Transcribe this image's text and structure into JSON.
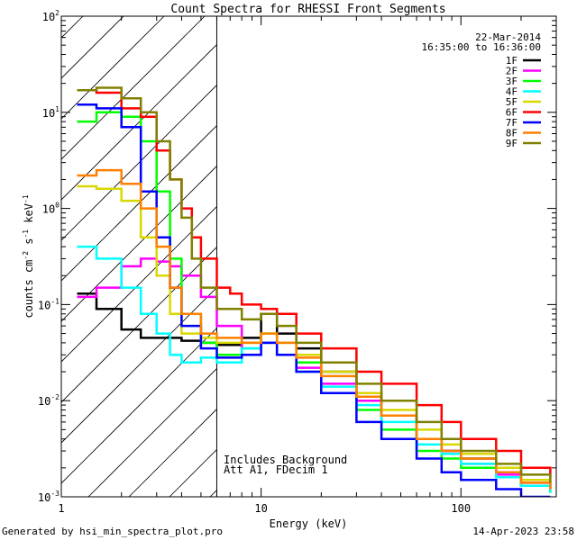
{
  "chart_data": {
    "type": "line",
    "title": "Count Spectra for RHESSI Front Segments",
    "xlabel": "Energy (keV)",
    "ylabel": "counts cm",
    "ylabel_sup1": "-2",
    "ylabel_mid": " s",
    "ylabel_sup2": "-1",
    "ylabel_mid2": " keV",
    "ylabel_sup3": "-1",
    "x_scale": "log",
    "y_scale": "log",
    "xlim": [
      1,
      300
    ],
    "ylim": [
      0.001,
      100
    ],
    "x_tick_labels": [
      {
        "value": 1,
        "label": "1"
      },
      {
        "value": 10,
        "label": "10"
      },
      {
        "value": 100,
        "label": "100"
      }
    ],
    "y_tick_labels": [
      {
        "value": 100,
        "base": "10",
        "exp": "2"
      },
      {
        "value": 10,
        "base": "10",
        "exp": "1"
      },
      {
        "value": 1,
        "base": "10",
        "exp": "0"
      },
      {
        "value": 0.1,
        "base": "10",
        "exp": "-1"
      },
      {
        "value": 0.01,
        "base": "10",
        "exp": "-2"
      },
      {
        "value": 0.001,
        "base": "10",
        "exp": "-3"
      }
    ],
    "date": "22-Mar-2014",
    "time_range": "16:35:00 to 16:36:00",
    "shaded_region_max_energy": 6,
    "annotations": [
      "Includes Background",
      "Att A1, FDecim 1"
    ],
    "series": [
      {
        "name": "1F",
        "color": "#000000",
        "points": [
          [
            1.2,
            0.13
          ],
          [
            1.5,
            0.09
          ],
          [
            2,
            0.055
          ],
          [
            2.5,
            0.045
          ],
          [
            3,
            0.045
          ],
          [
            4,
            0.042
          ],
          [
            5,
            0.04
          ],
          [
            6,
            0.038
          ],
          [
            8,
            0.045
          ],
          [
            10,
            0.08
          ],
          [
            12,
            0.05
          ],
          [
            15,
            0.035
          ],
          [
            20,
            0.02
          ],
          [
            30,
            0.012
          ],
          [
            40,
            0.007
          ],
          [
            60,
            0.004
          ],
          [
            80,
            0.003
          ],
          [
            100,
            0.0025
          ],
          [
            150,
            0.0018
          ],
          [
            200,
            0.0013
          ],
          [
            280,
            0.0012
          ]
        ]
      },
      {
        "name": "2F",
        "color": "#ff00ff",
        "points": [
          [
            1.2,
            0.12
          ],
          [
            1.5,
            0.15
          ],
          [
            2,
            0.25
          ],
          [
            2.5,
            0.3
          ],
          [
            3,
            0.28
          ],
          [
            3.5,
            0.25
          ],
          [
            4,
            0.2
          ],
          [
            5,
            0.12
          ],
          [
            6,
            0.06
          ],
          [
            8,
            0.035
          ],
          [
            10,
            0.04
          ],
          [
            12,
            0.03
          ],
          [
            15,
            0.022
          ],
          [
            20,
            0.015
          ],
          [
            30,
            0.01
          ],
          [
            40,
            0.007
          ],
          [
            60,
            0.004
          ],
          [
            80,
            0.003
          ],
          [
            100,
            0.0022
          ],
          [
            150,
            0.0017
          ],
          [
            200,
            0.0014
          ],
          [
            280,
            0.0012
          ]
        ]
      },
      {
        "name": "3F",
        "color": "#00ff00",
        "points": [
          [
            1.2,
            8
          ],
          [
            1.5,
            10
          ],
          [
            2,
            9
          ],
          [
            2.5,
            5
          ],
          [
            3,
            1.5
          ],
          [
            3.5,
            0.3
          ],
          [
            4,
            0.08
          ],
          [
            5,
            0.04
          ],
          [
            6,
            0.03
          ],
          [
            8,
            0.035
          ],
          [
            10,
            0.05
          ],
          [
            12,
            0.03
          ],
          [
            15,
            0.025
          ],
          [
            20,
            0.012
          ],
          [
            30,
            0.008
          ],
          [
            40,
            0.005
          ],
          [
            60,
            0.003
          ],
          [
            80,
            0.0025
          ],
          [
            100,
            0.002
          ],
          [
            150,
            0.0016
          ],
          [
            200,
            0.0013
          ],
          [
            280,
            0.0011
          ]
        ]
      },
      {
        "name": "4F",
        "color": "#00ffff",
        "points": [
          [
            1.2,
            0.4
          ],
          [
            1.5,
            0.3
          ],
          [
            2,
            0.15
          ],
          [
            2.5,
            0.08
          ],
          [
            3,
            0.05
          ],
          [
            3.5,
            0.03
          ],
          [
            4,
            0.025
          ],
          [
            5,
            0.028
          ],
          [
            6,
            0.025
          ],
          [
            8,
            0.035
          ],
          [
            10,
            0.04
          ],
          [
            12,
            0.03
          ],
          [
            15,
            0.02
          ],
          [
            20,
            0.014
          ],
          [
            30,
            0.009
          ],
          [
            40,
            0.006
          ],
          [
            60,
            0.0035
          ],
          [
            80,
            0.0028
          ],
          [
            100,
            0.0022
          ],
          [
            150,
            0.0016
          ],
          [
            200,
            0.0013
          ],
          [
            280,
            0.0011
          ]
        ]
      },
      {
        "name": "5F",
        "color": "#d8d800",
        "points": [
          [
            1.2,
            1.7
          ],
          [
            1.5,
            1.6
          ],
          [
            2,
            1.2
          ],
          [
            2.5,
            0.5
          ],
          [
            3,
            0.2
          ],
          [
            3.5,
            0.08
          ],
          [
            4,
            0.05
          ],
          [
            5,
            0.045
          ],
          [
            6,
            0.04
          ],
          [
            8,
            0.04
          ],
          [
            10,
            0.05
          ],
          [
            12,
            0.04
          ],
          [
            15,
            0.03
          ],
          [
            20,
            0.02
          ],
          [
            30,
            0.012
          ],
          [
            40,
            0.008
          ],
          [
            60,
            0.005
          ],
          [
            80,
            0.0035
          ],
          [
            100,
            0.0028
          ],
          [
            150,
            0.002
          ],
          [
            200,
            0.0015
          ],
          [
            280,
            0.0012
          ]
        ]
      },
      {
        "name": "6F",
        "color": "#ff0000",
        "points": [
          [
            1.2,
            17
          ],
          [
            1.5,
            16
          ],
          [
            2,
            11
          ],
          [
            2.5,
            9
          ],
          [
            3,
            4
          ],
          [
            3.5,
            2
          ],
          [
            4,
            1
          ],
          [
            4.5,
            0.5
          ],
          [
            5,
            0.3
          ],
          [
            6,
            0.15
          ],
          [
            7,
            0.13
          ],
          [
            8,
            0.1
          ],
          [
            10,
            0.09
          ],
          [
            12,
            0.08
          ],
          [
            15,
            0.05
          ],
          [
            20,
            0.035
          ],
          [
            30,
            0.02
          ],
          [
            40,
            0.015
          ],
          [
            60,
            0.009
          ],
          [
            80,
            0.006
          ],
          [
            100,
            0.004
          ],
          [
            150,
            0.003
          ],
          [
            200,
            0.002
          ],
          [
            280,
            0.0016
          ]
        ]
      },
      {
        "name": "7F",
        "color": "#0000ff",
        "points": [
          [
            1.2,
            12
          ],
          [
            1.5,
            11
          ],
          [
            2,
            7
          ],
          [
            2.5,
            1.5
          ],
          [
            3,
            0.5
          ],
          [
            3.5,
            0.15
          ],
          [
            4,
            0.06
          ],
          [
            5,
            0.035
          ],
          [
            6,
            0.028
          ],
          [
            8,
            0.03
          ],
          [
            10,
            0.04
          ],
          [
            12,
            0.03
          ],
          [
            15,
            0.02
          ],
          [
            20,
            0.012
          ],
          [
            30,
            0.006
          ],
          [
            40,
            0.004
          ],
          [
            60,
            0.0025
          ],
          [
            80,
            0.0018
          ],
          [
            100,
            0.0015
          ],
          [
            150,
            0.0012
          ],
          [
            200,
            0.001
          ],
          [
            280,
            0.001
          ]
        ]
      },
      {
        "name": "8F",
        "color": "#ff8000",
        "points": [
          [
            1.2,
            2.2
          ],
          [
            1.5,
            2.5
          ],
          [
            2,
            1.8
          ],
          [
            2.5,
            1
          ],
          [
            3,
            0.4
          ],
          [
            3.5,
            0.15
          ],
          [
            4,
            0.08
          ],
          [
            5,
            0.05
          ],
          [
            6,
            0.045
          ],
          [
            8,
            0.04
          ],
          [
            10,
            0.05
          ],
          [
            12,
            0.04
          ],
          [
            15,
            0.028
          ],
          [
            20,
            0.018
          ],
          [
            30,
            0.011
          ],
          [
            40,
            0.007
          ],
          [
            60,
            0.004
          ],
          [
            80,
            0.003
          ],
          [
            100,
            0.0025
          ],
          [
            150,
            0.0018
          ],
          [
            200,
            0.0014
          ],
          [
            280,
            0.0012
          ]
        ]
      },
      {
        "name": "9F",
        "color": "#808000",
        "points": [
          [
            1.2,
            17
          ],
          [
            1.5,
            18
          ],
          [
            2,
            14
          ],
          [
            2.5,
            10
          ],
          [
            3,
            5
          ],
          [
            3.5,
            2
          ],
          [
            4,
            0.8
          ],
          [
            4.5,
            0.3
          ],
          [
            5,
            0.15
          ],
          [
            6,
            0.09
          ],
          [
            8,
            0.07
          ],
          [
            10,
            0.08
          ],
          [
            12,
            0.06
          ],
          [
            15,
            0.04
          ],
          [
            20,
            0.025
          ],
          [
            30,
            0.015
          ],
          [
            40,
            0.01
          ],
          [
            60,
            0.006
          ],
          [
            80,
            0.004
          ],
          [
            100,
            0.003
          ],
          [
            150,
            0.0022
          ],
          [
            200,
            0.0017
          ],
          [
            280,
            0.0014
          ]
        ]
      }
    ]
  },
  "footer": {
    "left": "Generated by hsi_min_spectra_plot.pro",
    "right": "14-Apr-2023 23:58"
  }
}
